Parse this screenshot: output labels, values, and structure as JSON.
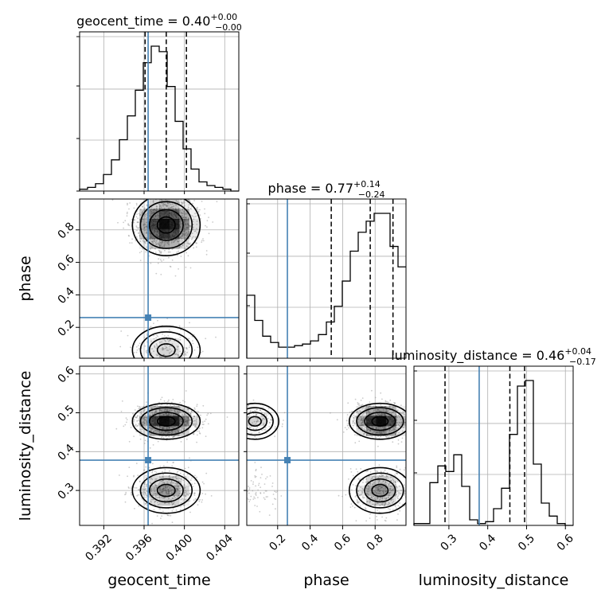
{
  "colors": {
    "truth": "#4682b4",
    "hist": "#000000",
    "grid": "#b0b0b0",
    "density": "#000000"
  },
  "chart_data": {
    "type": "corner",
    "parameters": [
      "geocent_time",
      "phase",
      "luminosity_distance"
    ],
    "titles": [
      {
        "param": "geocent_time",
        "median": "0.40",
        "plus": "+0.00",
        "minus": "−0.00"
      },
      {
        "param": "phase",
        "median": "0.77",
        "plus": "+0.14",
        "minus": "−0.24"
      },
      {
        "param": "luminosity_distance",
        "median": "0.46",
        "plus": "+0.04",
        "minus": "−0.17"
      }
    ],
    "axis_labels": {
      "x": [
        "geocent_time",
        "phase",
        "luminosity_distance"
      ],
      "y": [
        "phase",
        "luminosity_distance"
      ]
    },
    "ranges": {
      "geocent_time": [
        0.3896,
        0.4054
      ],
      "phase": [
        0.01,
        0.99
      ],
      "luminosity_distance": [
        0.21,
        0.62
      ]
    },
    "ticks": {
      "geocent_time": {
        "values": [
          0.392,
          0.396,
          0.4,
          0.404
        ],
        "labels": [
          "0.392",
          "0.396",
          "0.400",
          "0.404"
        ]
      },
      "phase": {
        "values": [
          0.2,
          0.4,
          0.6,
          0.8
        ],
        "labels": [
          "0.2",
          "0.4",
          "0.6",
          "0.8"
        ]
      },
      "luminosity_distance": {
        "values": [
          0.3,
          0.4,
          0.5,
          0.6
        ],
        "labels": [
          "0.3",
          "0.4",
          "0.5",
          "0.6"
        ]
      }
    },
    "truths": {
      "geocent_time": 0.3964,
      "phase": 0.26,
      "luminosity_distance": 0.378
    },
    "quantiles": {
      "geocent_time": [
        0.3961,
        0.3982,
        0.4002
      ],
      "phase": [
        0.53,
        0.77,
        0.91
      ],
      "luminosity_distance": [
        0.29,
        0.457,
        0.495
      ]
    },
    "histograms": {
      "geocent_time": {
        "edges_start": 0.3896,
        "edges_step": 0.00079,
        "counts": [
          1,
          2,
          4,
          9,
          17,
          28,
          41,
          55,
          70,
          79,
          76,
          57,
          38,
          23,
          12,
          5,
          3,
          2,
          1,
          0
        ]
      },
      "phase": {
        "edges_start": 0.01,
        "edges_step": 0.049,
        "counts": [
          40,
          24,
          14,
          10,
          7,
          7,
          8,
          9,
          11,
          15,
          23,
          33,
          49,
          68,
          80,
          87,
          92,
          92,
          71,
          58
        ]
      },
      "luminosity_distance": {
        "edges_start": 0.21,
        "edges_step": 0.0205,
        "counts": [
          1,
          1,
          23,
          32,
          29,
          38,
          21,
          3,
          1,
          2,
          9,
          20,
          49,
          75,
          78,
          33,
          12,
          5,
          1,
          0
        ]
      }
    },
    "modes": {
      "geocent_time": [
        {
          "mu": 0.3982,
          "sigma": 0.0016,
          "w": 1
        }
      ],
      "phase": [
        {
          "mu": 0.83,
          "sigma": 0.09,
          "w": 0.82
        },
        {
          "mu": 0.06,
          "sigma": 0.07,
          "w": 0.18
        }
      ],
      "luminosity_distance": [
        {
          "mu": 0.478,
          "sigma": 0.022,
          "w": 0.62
        },
        {
          "mu": 0.3,
          "sigma": 0.028,
          "w": 0.38
        }
      ]
    }
  }
}
